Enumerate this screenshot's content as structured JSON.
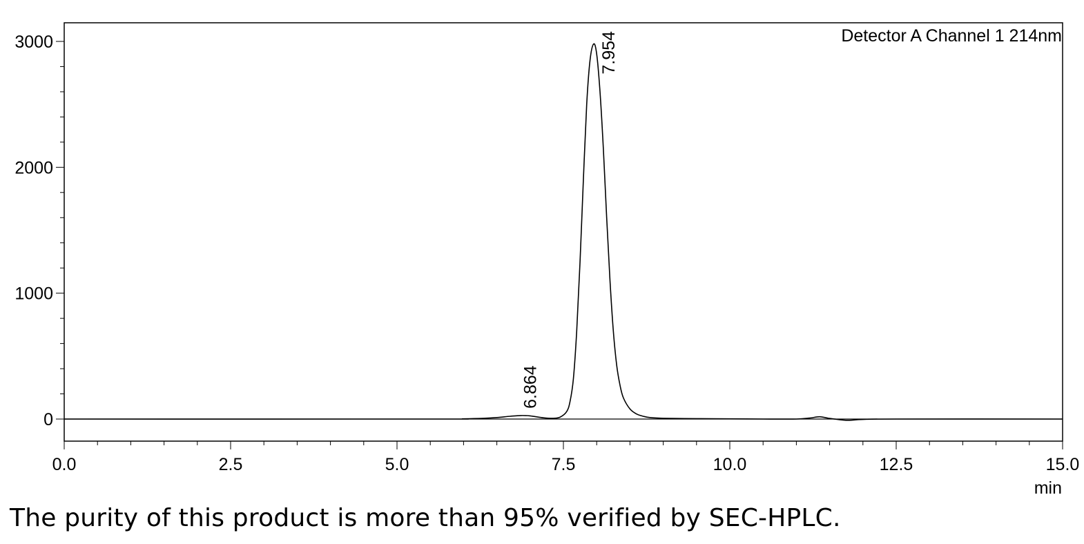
{
  "chart_data": {
    "type": "line",
    "title": "",
    "legend_text": "Detector A Channel 1 214nm",
    "xlabel": "",
    "ylabel": "",
    "x_unit_label": "min",
    "xlim": [
      0,
      15
    ],
    "ylim": [
      -170,
      3150
    ],
    "x_ticks": [
      0.0,
      2.5,
      5.0,
      7.5,
      10.0,
      12.5,
      15.0
    ],
    "x_tick_labels": [
      "0.0",
      "2.5",
      "5.0",
      "7.5",
      "10.0",
      "12.5",
      "15.0"
    ],
    "y_ticks": [
      0,
      1000,
      2000,
      3000
    ],
    "y_tick_labels": [
      "0",
      "1000",
      "2000",
      "3000"
    ],
    "baseline": 0,
    "grid": false,
    "series": [
      {
        "x": [
          0.0,
          5.5,
          6.0,
          6.3,
          6.5,
          6.7,
          6.864,
          7.0,
          7.2,
          7.35,
          7.45,
          7.55,
          7.6,
          7.65,
          7.7,
          7.75,
          7.8,
          7.85,
          7.9,
          7.954,
          8.0,
          8.05,
          8.1,
          8.15,
          8.2,
          8.25,
          8.3,
          8.35,
          8.4,
          8.5,
          8.6,
          8.7,
          8.8,
          9.0,
          9.5,
          10.0,
          10.5,
          11.0,
          11.2,
          11.35,
          11.5,
          11.7,
          11.8,
          12.0,
          12.5,
          15.0
        ],
        "y": [
          0,
          0,
          2,
          6,
          12,
          22,
          28,
          25,
          10,
          6,
          15,
          60,
          140,
          320,
          700,
          1250,
          1900,
          2500,
          2850,
          2980,
          2900,
          2600,
          2150,
          1600,
          1100,
          700,
          430,
          270,
          170,
          80,
          40,
          22,
          12,
          6,
          3,
          2,
          0,
          0,
          8,
          18,
          5,
          -8,
          -10,
          -3,
          0,
          0
        ]
      }
    ],
    "peak_labels": [
      {
        "x": 6.864,
        "y": 28,
        "text": "6.864"
      },
      {
        "x": 7.954,
        "y": 2980,
        "text": "7.954"
      }
    ]
  },
  "caption": "The purity of this product is more than 95% verified by SEC-HPLC."
}
